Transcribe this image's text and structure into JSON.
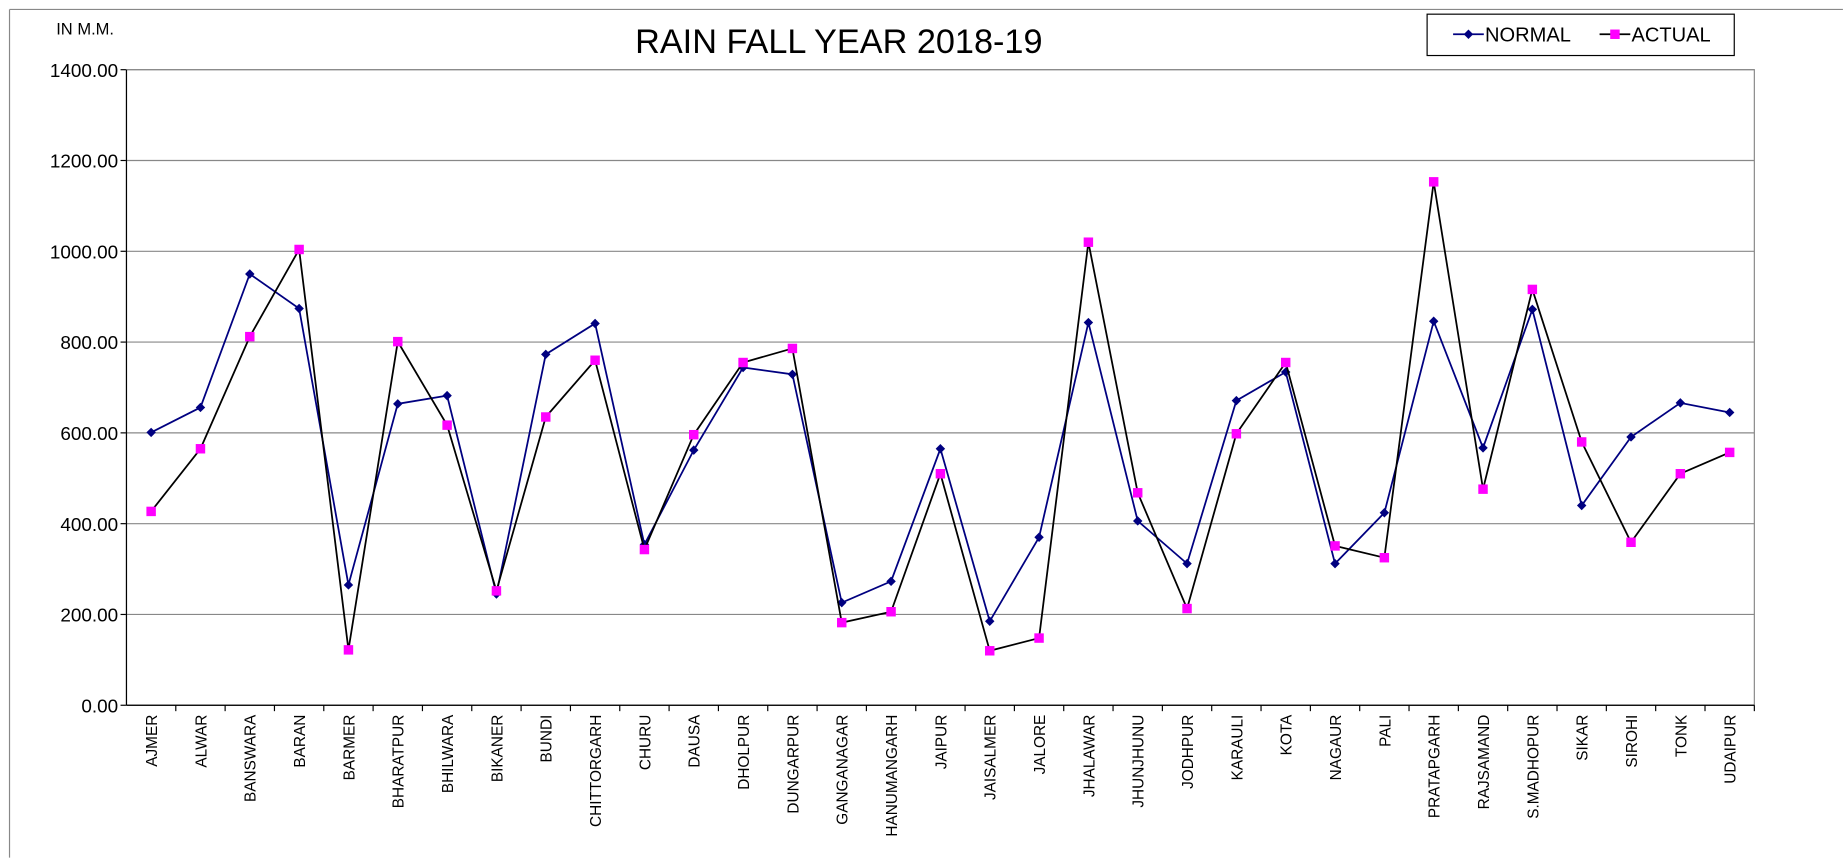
{
  "chart_data": {
    "type": "line",
    "title": "RAIN  FALL YEAR  2018-19",
    "y_label": "IN M.M.",
    "categories": [
      "AJMER",
      "ALWAR",
      "BANSWARA",
      "BARAN",
      "BARMER",
      "BHARATPUR",
      "BHILWARA",
      "BIKANER",
      "BUNDI",
      "CHITTORGARH",
      "CHURU",
      "DAUSA",
      "DHOLPUR",
      "DUNGARPUR",
      "GANGANAGAR",
      "HANUMANGARH",
      "JAIPUR",
      "JAISALMER",
      "JALORE",
      "JHALAWAR",
      "JHUNJHUNU",
      "JODHPUR",
      "KARAULI",
      "KOTA",
      "NAGAUR",
      "PALI",
      "PRATAPGARH",
      "RAJSAMAND",
      "S.MADHOPUR",
      "SIKAR",
      "SIROHI",
      "TONK",
      "UDAIPUR"
    ],
    "series": [
      {
        "name": "NORMAL",
        "color": "#000080",
        "line_color": "#000080",
        "marker": "diamond",
        "values": [
          601,
          656,
          950,
          874,
          265,
          664,
          682,
          245,
          773,
          841,
          354,
          562,
          744,
          729,
          226,
          273,
          565,
          185,
          370,
          843,
          406,
          312,
          671,
          734,
          312,
          424,
          846,
          567,
          872,
          440,
          591,
          666,
          645
        ]
      },
      {
        "name": "ACTUAL",
        "color": "#ff00ff",
        "line_color": "#000000",
        "marker": "square",
        "values": [
          427,
          565,
          812,
          1004,
          122,
          801,
          617,
          252,
          635,
          760,
          343,
          596,
          755,
          786,
          182,
          206,
          510,
          120,
          148,
          1020,
          468,
          213,
          598,
          755,
          351,
          325,
          1153,
          476,
          916,
          580,
          359,
          510,
          557
        ]
      }
    ],
    "ylim": [
      0,
      1400
    ],
    "yticks": [
      {
        "value": 0,
        "label": "0.00"
      },
      {
        "value": 200,
        "label": "200.00"
      },
      {
        "value": 400,
        "label": "400.00"
      },
      {
        "value": 600,
        "label": "600.00"
      },
      {
        "value": 800,
        "label": "800.00"
      },
      {
        "value": 1000,
        "label": "1000.00"
      },
      {
        "value": 1200,
        "label": "1200.00"
      },
      {
        "value": 1400,
        "label": "1400.00"
      }
    ],
    "grid": true,
    "legend": "top-right"
  }
}
